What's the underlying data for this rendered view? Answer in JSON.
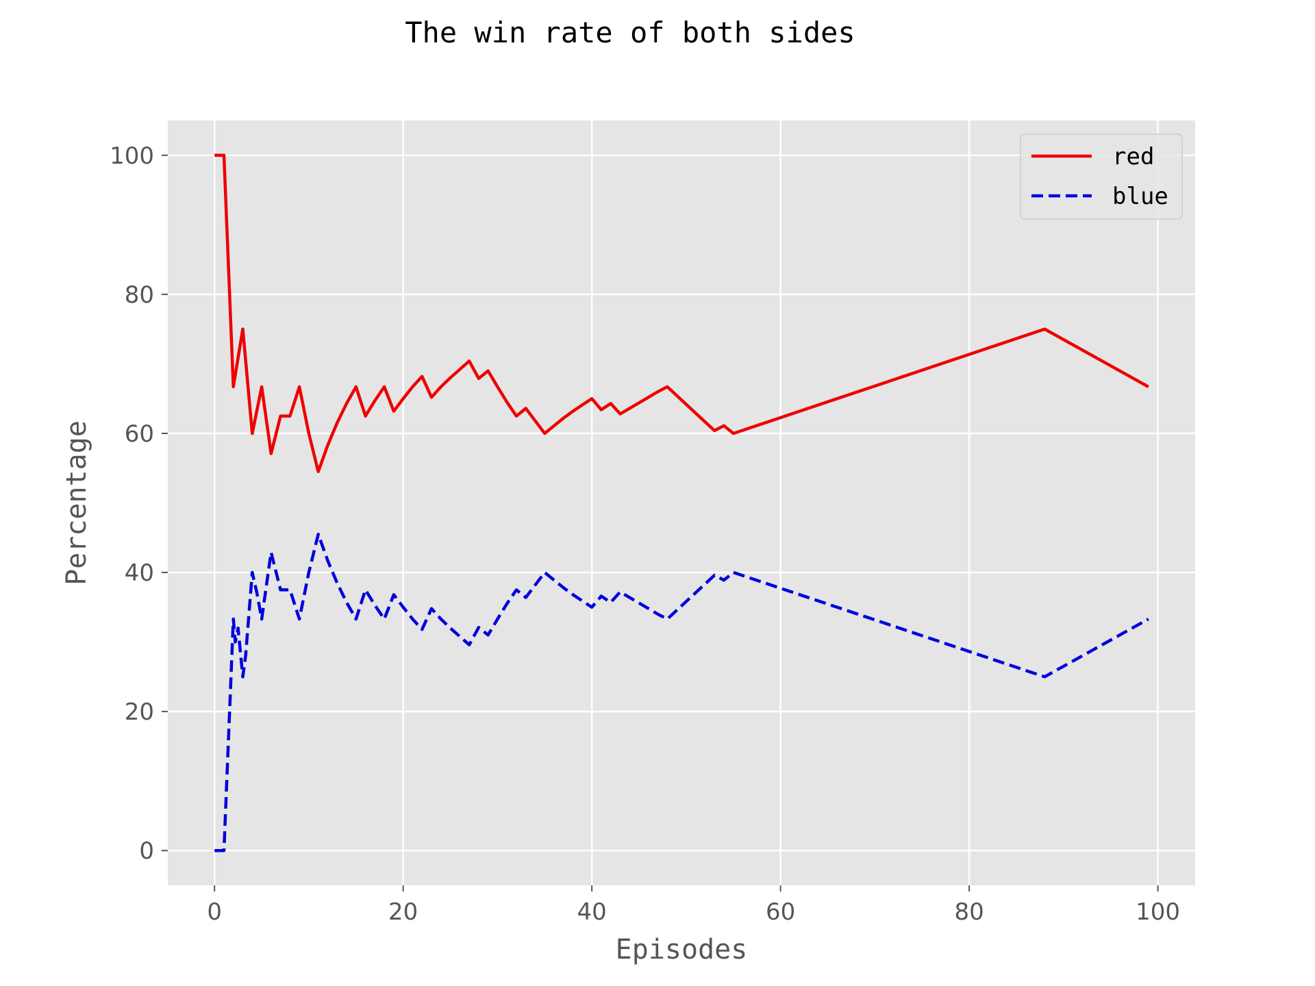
{
  "chart_data": {
    "type": "line",
    "title": "The win rate of both sides",
    "xlabel": "Episodes",
    "ylabel": "Percentage",
    "xlim": [
      -4.95,
      103.95
    ],
    "ylim": [
      -5,
      105
    ],
    "xticks": [
      0,
      20,
      40,
      60,
      80,
      100
    ],
    "yticks": [
      0,
      20,
      40,
      60,
      80,
      100
    ],
    "grid": true,
    "background": "#E5E5E5",
    "legend_position": "top-right",
    "series": [
      {
        "name": "red",
        "color": "#EE0000",
        "dash": "solid",
        "x": [
          0,
          1,
          2,
          3,
          4,
          5,
          6,
          7,
          8,
          9,
          10,
          11,
          12,
          13,
          14,
          15,
          16,
          17,
          18,
          19,
          20,
          21,
          22,
          23,
          24,
          25,
          26,
          27,
          28,
          29,
          30,
          31,
          32,
          33,
          34,
          35,
          36,
          37,
          38,
          39,
          40,
          41,
          42,
          43,
          44,
          45,
          46,
          47,
          48,
          53,
          54,
          55,
          88,
          99
        ],
        "y": [
          100,
          100,
          66.7,
          75,
          60,
          66.7,
          57.1,
          62.5,
          62.5,
          66.7,
          60,
          54.5,
          58.3,
          61.5,
          64.3,
          66.7,
          62.5,
          64.7,
          66.7,
          63.2,
          65,
          66.7,
          68.2,
          65.2,
          66.7,
          68,
          69.2,
          70.4,
          67.9,
          69,
          66.7,
          64.5,
          62.5,
          63.6,
          61.8,
          60,
          61.1,
          62.2,
          63.2,
          64.1,
          65,
          63.4,
          64.3,
          62.8,
          63.6,
          64.4,
          65.2,
          66,
          66.7,
          60.4,
          61.1,
          60,
          75,
          66.7
        ]
      },
      {
        "name": "blue",
        "color": "#0000DD",
        "dash": "dashed",
        "x": [
          0,
          1,
          2,
          2.2,
          2.5,
          3,
          3.3,
          4,
          4.5,
          5,
          6,
          7,
          8,
          9,
          10,
          11,
          12,
          13,
          14,
          15,
          16,
          17,
          18,
          19,
          20,
          21,
          22,
          23,
          24,
          25,
          26,
          27,
          28,
          29,
          30,
          31,
          32,
          33,
          34,
          35,
          36,
          37,
          38,
          39,
          40,
          41,
          42,
          43,
          44,
          45,
          46,
          47,
          48,
          53,
          54,
          55,
          88,
          99
        ],
        "y": [
          0,
          0,
          33.3,
          30,
          32,
          25,
          28,
          40,
          37,
          33.3,
          42.9,
          37.5,
          37.5,
          33.3,
          40,
          45.5,
          41.7,
          38.5,
          35.7,
          33.3,
          37.5,
          35.3,
          33.3,
          36.8,
          35,
          33.3,
          31.8,
          34.8,
          33.3,
          32,
          30.8,
          29.6,
          32.1,
          31,
          33.3,
          35.5,
          37.5,
          36.4,
          38.2,
          40,
          38.9,
          37.8,
          36.8,
          35.9,
          35,
          36.6,
          35.7,
          37.2,
          36.4,
          35.6,
          34.8,
          34,
          33.3,
          39.6,
          38.9,
          40,
          25,
          33.3
        ]
      }
    ]
  }
}
